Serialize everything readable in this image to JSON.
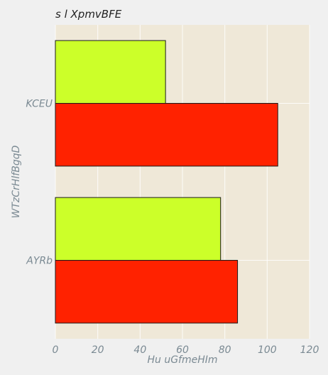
{
  "chart_data": {
    "type": "bar",
    "orientation": "horizontal",
    "title": "s l XpmvBFE",
    "xlabel": "Hu uGfmeHIm",
    "ylabel": "WTzCrHlfBgqD",
    "categories": [
      "KCEU",
      "AYRb"
    ],
    "series": [
      {
        "color": "#ccff29",
        "values": [
          52,
          78
        ]
      },
      {
        "color": "#ff2200",
        "values": [
          105,
          86
        ]
      }
    ],
    "xlim": [
      0,
      120
    ],
    "xticks": [
      "0",
      "20",
      "40",
      "60",
      "80",
      "100",
      "120"
    ],
    "grid": true,
    "legend": "none"
  },
  "colors": {
    "page_background": "#f0f0f0",
    "plot_background": "#efe8d8",
    "grid": "#ffffff",
    "text": "#7b8a93"
  }
}
